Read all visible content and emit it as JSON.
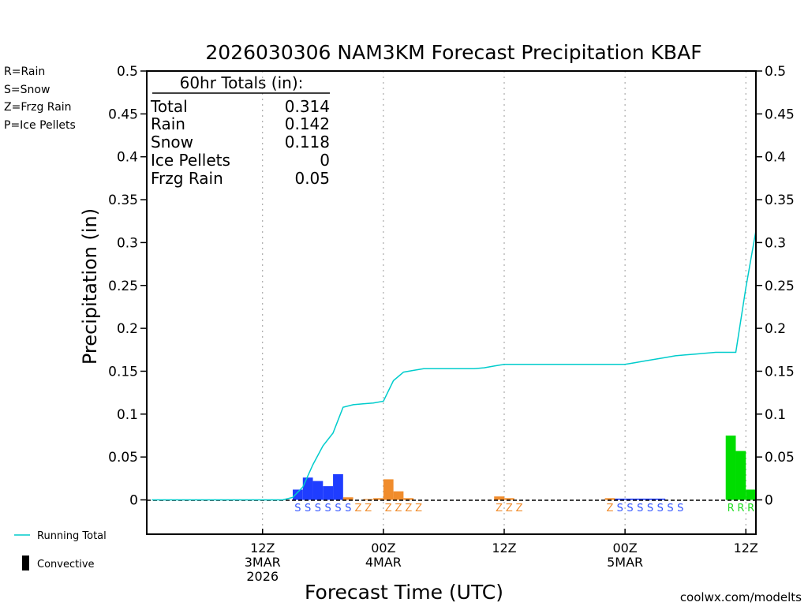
{
  "chart_data": {
    "type": "bar",
    "title": "2026030306 NAM3KM Forecast Precipitation KBAF",
    "xlabel": "Forecast Time (UTC)",
    "ylabel": "Precipitation (in)",
    "ylim": [
      -0.04,
      0.5
    ],
    "xlim_hours": [
      -5.5,
      55
    ],
    "y_ticks": [
      "0",
      "0.05",
      "0.1",
      "0.15",
      "0.2",
      "0.25",
      "0.3",
      "0.35",
      "0.4",
      "0.45",
      "0.5"
    ],
    "x_ticks": [
      {
        "hour": 6,
        "lines": [
          "12Z",
          "3MAR",
          "2026"
        ]
      },
      {
        "hour": 18,
        "lines": [
          "00Z",
          "4MAR"
        ]
      },
      {
        "hour": 30,
        "lines": [
          "12Z"
        ]
      },
      {
        "hour": 42,
        "lines": [
          "00Z",
          "5MAR"
        ]
      },
      {
        "hour": 54,
        "lines": [
          "12Z"
        ]
      }
    ],
    "type_legend": [
      {
        "text": "R=Rain",
        "color": "#22dd22"
      },
      {
        "text": "S=Snow",
        "color": "#3355ff"
      },
      {
        "text": "Z=Frzg Rain",
        "color": "#f08c2c"
      },
      {
        "text": "P=Ice Pellets",
        "color": "#ee3399"
      }
    ],
    "totals": {
      "heading": "60hr Totals (in):",
      "rows": [
        {
          "label": "Total",
          "value": "0.314"
        },
        {
          "label": "Rain",
          "value": "0.142"
        },
        {
          "label": "Snow",
          "value": "0.118"
        },
        {
          "label": "Ice Pellets",
          "value": "0"
        },
        {
          "label": "Frzg Rain",
          "value": "0.05"
        }
      ]
    },
    "series": [
      {
        "name": "Snow",
        "color": "#1f3dff",
        "bars": [
          {
            "hour": 10,
            "value": 0.012
          },
          {
            "hour": 11,
            "value": 0.026
          },
          {
            "hour": 12,
            "value": 0.022
          },
          {
            "hour": 13,
            "value": 0.016
          },
          {
            "hour": 14,
            "value": 0.03
          },
          {
            "hour": 42,
            "value": 0.0015
          },
          {
            "hour": 43,
            "value": 0.0015
          },
          {
            "hour": 44,
            "value": 0.0015
          },
          {
            "hour": 45,
            "value": 0.0015
          },
          {
            "hour": 46,
            "value": 0.0015
          }
        ]
      },
      {
        "name": "Frzg Rain",
        "color": "#f08c2c",
        "bars": [
          {
            "hour": 15,
            "value": 0.003
          },
          {
            "hour": 17,
            "value": 0.001
          },
          {
            "hour": 18,
            "value": 0.002
          },
          {
            "hour": 19,
            "value": 0.024
          },
          {
            "hour": 20,
            "value": 0.01
          },
          {
            "hour": 21,
            "value": 0.002
          },
          {
            "hour": 30,
            "value": 0.004
          },
          {
            "hour": 31,
            "value": 0.002
          },
          {
            "hour": 41,
            "value": 0.002
          }
        ]
      },
      {
        "name": "Rain",
        "color": "#00dd00",
        "bars": [
          {
            "hour": 53,
            "value": 0.075
          },
          {
            "hour": 54,
            "value": 0.057
          },
          {
            "hour": 55,
            "value": 0.012
          }
        ]
      },
      {
        "name": "Running Total",
        "type": "line",
        "color": "#00cccc",
        "x": [
          -5,
          5,
          8,
          9,
          10,
          11,
          12,
          13,
          14,
          15,
          16,
          17,
          18,
          19,
          20,
          21,
          22,
          23,
          24,
          25,
          26,
          27,
          28,
          29,
          30,
          31,
          32,
          36,
          40,
          41,
          42,
          43,
          44,
          45,
          46,
          47,
          48,
          49,
          50,
          51,
          52,
          53,
          54,
          55
        ],
        "values": [
          0,
          0,
          0,
          0.003,
          0.015,
          0.041,
          0.063,
          0.078,
          0.108,
          0.111,
          0.112,
          0.113,
          0.115,
          0.139,
          0.149,
          0.151,
          0.153,
          0.153,
          0.153,
          0.153,
          0.153,
          0.153,
          0.154,
          0.156,
          0.158,
          0.158,
          0.158,
          0.158,
          0.158,
          0.158,
          0.158,
          0.16,
          0.162,
          0.164,
          0.166,
          0.168,
          0.169,
          0.17,
          0.171,
          0.172,
          0.172,
          0.172,
          0.247,
          0.314
        ]
      }
    ],
    "type_markers": [
      {
        "hours": [
          10,
          11,
          12,
          13,
          14,
          15
        ],
        "letter": "S",
        "color": "#3355ff"
      },
      {
        "hours": [
          16,
          17
        ],
        "letter": "Z",
        "color": "#f08c2c"
      },
      {
        "hours": [
          19,
          20,
          21,
          22
        ],
        "letter": "Z",
        "color": "#f08c2c"
      },
      {
        "hours": [
          30,
          31,
          32
        ],
        "letter": "Z",
        "color": "#f08c2c"
      },
      {
        "hours": [
          41
        ],
        "letter": "Z",
        "color": "#f08c2c"
      },
      {
        "hours": [
          42,
          43,
          44,
          45,
          46,
          47,
          48
        ],
        "letter": "S",
        "color": "#3355ff"
      },
      {
        "hours": [
          53,
          54,
          55
        ],
        "letter": "R",
        "color": "#22dd22"
      }
    ],
    "bottom_legend": {
      "line_label": "Running Total",
      "bar_label": "Convective"
    },
    "credit": "coolwx.com/modelts"
  }
}
